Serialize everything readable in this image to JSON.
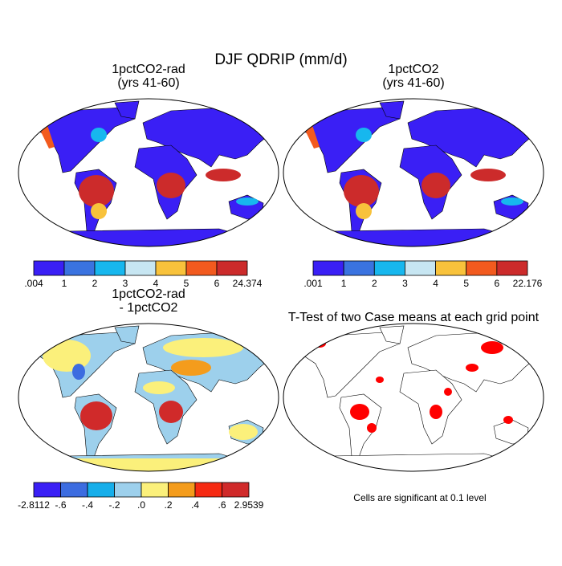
{
  "title": "DJF QDRIP (mm/d)",
  "panels": [
    {
      "title": [
        "1pctCO2-rad",
        "(yrs 41-60)"
      ],
      "colorbar": {
        "colors": [
          "#3a1ff5",
          "#3a73e0",
          "#17b7ee",
          "#c7e6f2",
          "#f8c23b",
          "#f25a1e",
          "#cc2b2b"
        ],
        "labels": [
          ".004",
          "1",
          "2",
          "3",
          "4",
          "5",
          "6",
          "24.374"
        ]
      }
    },
    {
      "title": [
        "1pctCO2",
        "(yrs 41-60)"
      ],
      "colorbar": {
        "colors": [
          "#3a1ff5",
          "#3a73e0",
          "#17b7ee",
          "#c7e6f2",
          "#f8c23b",
          "#f25a1e",
          "#cc2b2b"
        ],
        "labels": [
          ".001",
          "1",
          "2",
          "3",
          "4",
          "5",
          "6",
          "22.176"
        ]
      }
    },
    {
      "title": [
        "1pctCO2-rad",
        "- 1pctCO2"
      ],
      "colorbar": {
        "colors": [
          "#3a1ff5",
          "#3c6ce0",
          "#16aeea",
          "#9dd0ec",
          "#fbf07b",
          "#f49c1c",
          "#f62a12",
          "#d02a2a"
        ],
        "labels": [
          "-2.8112",
          "-.6",
          "-.4",
          "-.2",
          ".0",
          ".2",
          ".4",
          ".6",
          "2.9539"
        ]
      }
    },
    {
      "title": [
        "T-Test of two Case means at each grid point"
      ],
      "note": "Cells are significant at 0.1 level"
    }
  ]
}
